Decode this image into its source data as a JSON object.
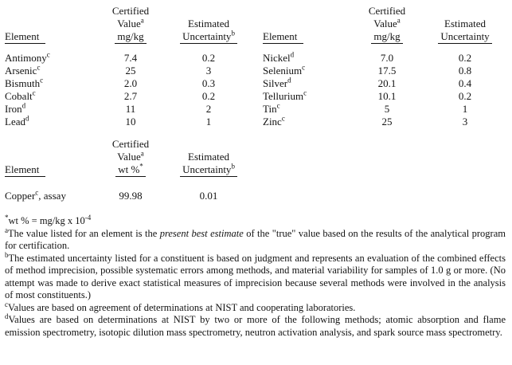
{
  "top": {
    "left": {
      "header": {
        "certified": "Certified",
        "value": "Value",
        "value_sup": "a",
        "unit": "mg/kg",
        "estimated": "Estimated",
        "uncertainty": "Uncertainty",
        "uncertainty_sup": "b",
        "element": "Element"
      },
      "rows": [
        {
          "element": "Antimony",
          "sup": "c",
          "value": "7.4",
          "uncertainty": "0.2"
        },
        {
          "element": "Arsenic",
          "sup": "c",
          "value": "25",
          "uncertainty": "3"
        },
        {
          "element": "Bismuth",
          "sup": "c",
          "value": "2.0",
          "uncertainty": "0.3"
        },
        {
          "element": "Cobalt",
          "sup": "c",
          "value": "2.7",
          "uncertainty": "0.2"
        },
        {
          "element": "Iron",
          "sup": "d",
          "value": "11",
          "uncertainty": "2"
        },
        {
          "element": "Lead",
          "sup": "d",
          "value": "10",
          "uncertainty": "1"
        }
      ]
    },
    "right": {
      "header": {
        "certified": "Certified",
        "value": "Value",
        "value_sup": "a",
        "unit": "mg/kg",
        "estimated": "Estimated",
        "uncertainty": "Uncertainty",
        "element": "Element"
      },
      "rows": [
        {
          "element": "Nickel",
          "sup": "d",
          "value": "7.0",
          "uncertainty": "0.2"
        },
        {
          "element": "Selenium",
          "sup": "c",
          "value": "17.5",
          "uncertainty": "0.8"
        },
        {
          "element": "Silver",
          "sup": "d",
          "value": "20.1",
          "uncertainty": "0.4"
        },
        {
          "element": "Tellurium",
          "sup": "c",
          "value": "10.1",
          "uncertainty": "0.2"
        },
        {
          "element": "Tin",
          "sup": "c",
          "value": "5",
          "uncertainty": "1"
        },
        {
          "element": "Zinc",
          "sup": "c",
          "value": "25",
          "uncertainty": "3"
        }
      ]
    }
  },
  "copper": {
    "header": {
      "certified": "Certified",
      "value": "Value",
      "value_sup": "a",
      "unit": "wt %",
      "unit_sup": "*",
      "estimated": "Estimated",
      "uncertainty": "Uncertainty",
      "uncertainty_sup": "b",
      "element": "Element"
    },
    "row": {
      "element": "Copper",
      "sup": "c",
      "suffix": ", assay",
      "value": "99.98",
      "uncertainty": "0.01"
    }
  },
  "footnotes": {
    "star": {
      "sup": "*",
      "text": "wt % = mg/kg x 10",
      "exp": "-4"
    },
    "a": {
      "sup": "a",
      "pre": "The value listed for an element is the ",
      "italic": "present best estimate",
      "post": " of the \"true\" value based on the results of the analytical program for certification."
    },
    "b": {
      "sup": "b",
      "text": "The estimated uncertainty listed for a constituent is based on judgment and represents an evaluation of the combined effects of method imprecision, possible systematic errors among methods, and material variability for samples of 1.0 g or more.  (No attempt was made to derive exact statistical measures of imprecision because several methods were involved in the analysis of most constituents.)"
    },
    "c": {
      "sup": "c",
      "text": "Values are based on agreement of determinations at NIST and cooperating laboratories."
    },
    "d": {
      "sup": "d",
      "text": "Values are based on determinations at NIST by two or more of the following methods; atomic absorption and flame emission spectrometry, isotopic dilution mass spectrometry, neutron activation analysis, and spark source mass spectrometry."
    }
  }
}
